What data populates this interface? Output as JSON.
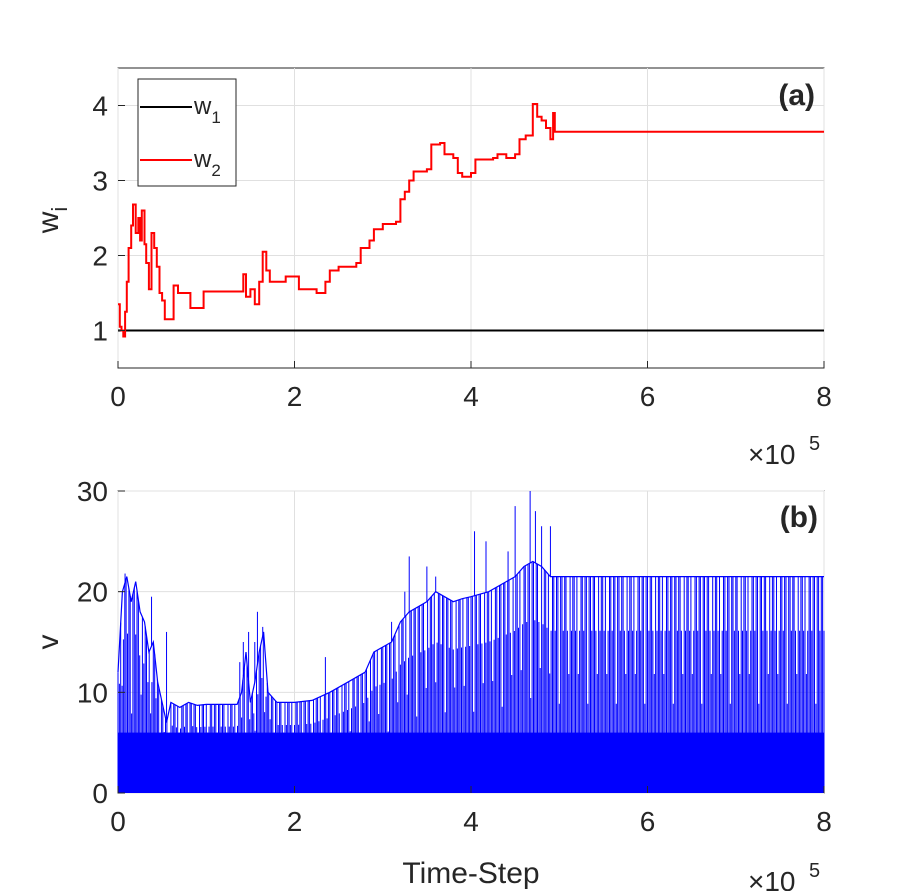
{
  "figure": {
    "x_exponent_base": "×10",
    "x_exponent_power": "5"
  },
  "chart_data": [
    {
      "type": "line",
      "panel_label": "(a)",
      "xlabel": "",
      "ylabel": "w",
      "ylabel_subscript": "i",
      "xlim": [
        0,
        8
      ],
      "ylim": [
        0.5,
        4.5
      ],
      "x_scale_note": "×10^5",
      "grid": true,
      "legend": {
        "placement": "top-left",
        "entries": [
          {
            "base": "w",
            "sub": "1",
            "color": "#000000"
          },
          {
            "base": "w",
            "sub": "2",
            "color": "#ff0000"
          }
        ]
      },
      "x_ticks": [
        "0",
        "2",
        "4",
        "6",
        "8"
      ],
      "y_ticks": [
        "1",
        "2",
        "3",
        "4"
      ],
      "series": [
        {
          "name": "w1",
          "color": "#000000",
          "points": [
            [
              0,
              1
            ],
            [
              8,
              1
            ]
          ]
        },
        {
          "name": "w2",
          "color": "#ff0000",
          "points": [
            [
              0,
              1.35
            ],
            [
              0.02,
              1.05
            ],
            [
              0.04,
              1.0
            ],
            [
              0.06,
              0.92
            ],
            [
              0.08,
              1.25
            ],
            [
              0.1,
              1.65
            ],
            [
              0.12,
              2.1
            ],
            [
              0.15,
              2.4
            ],
            [
              0.17,
              2.68
            ],
            [
              0.2,
              2.3
            ],
            [
              0.23,
              2.5
            ],
            [
              0.25,
              2.2
            ],
            [
              0.27,
              2.6
            ],
            [
              0.3,
              2.15
            ],
            [
              0.32,
              1.9
            ],
            [
              0.35,
              1.55
            ],
            [
              0.38,
              2.3
            ],
            [
              0.41,
              2.1
            ],
            [
              0.44,
              1.85
            ],
            [
              0.47,
              1.5
            ],
            [
              0.5,
              1.4
            ],
            [
              0.53,
              1.15
            ],
            [
              0.6,
              1.15
            ],
            [
              0.63,
              1.6
            ],
            [
              0.68,
              1.5
            ],
            [
              0.8,
              1.5
            ],
            [
              0.82,
              1.3
            ],
            [
              0.95,
              1.3
            ],
            [
              0.97,
              1.52
            ],
            [
              1.3,
              1.52
            ],
            [
              1.4,
              1.52
            ],
            [
              1.42,
              1.75
            ],
            [
              1.45,
              1.45
            ],
            [
              1.5,
              1.55
            ],
            [
              1.55,
              1.35
            ],
            [
              1.6,
              1.65
            ],
            [
              1.64,
              2.05
            ],
            [
              1.68,
              1.8
            ],
            [
              1.72,
              1.65
            ],
            [
              1.85,
              1.65
            ],
            [
              1.9,
              1.72
            ],
            [
              2.0,
              1.72
            ],
            [
              2.05,
              1.55
            ],
            [
              2.2,
              1.55
            ],
            [
              2.25,
              1.5
            ],
            [
              2.35,
              1.65
            ],
            [
              2.4,
              1.8
            ],
            [
              2.5,
              1.85
            ],
            [
              2.7,
              1.9
            ],
            [
              2.75,
              2.1
            ],
            [
              2.85,
              2.2
            ],
            [
              2.9,
              2.35
            ],
            [
              3.0,
              2.42
            ],
            [
              3.15,
              2.45
            ],
            [
              3.2,
              2.75
            ],
            [
              3.25,
              2.85
            ],
            [
              3.3,
              3.0
            ],
            [
              3.35,
              3.12
            ],
            [
              3.5,
              3.15
            ],
            [
              3.55,
              3.48
            ],
            [
              3.65,
              3.5
            ],
            [
              3.7,
              3.35
            ],
            [
              3.8,
              3.3
            ],
            [
              3.85,
              3.1
            ],
            [
              3.9,
              3.05
            ],
            [
              4.0,
              3.1
            ],
            [
              4.05,
              3.28
            ],
            [
              4.25,
              3.3
            ],
            [
              4.3,
              3.35
            ],
            [
              4.4,
              3.3
            ],
            [
              4.5,
              3.35
            ],
            [
              4.55,
              3.55
            ],
            [
              4.62,
              3.6
            ],
            [
              4.7,
              4.02
            ],
            [
              4.75,
              3.85
            ],
            [
              4.8,
              3.8
            ],
            [
              4.85,
              3.7
            ],
            [
              4.9,
              3.55
            ],
            [
              4.93,
              3.9
            ],
            [
              4.95,
              3.65
            ],
            [
              8.0,
              3.65
            ]
          ]
        }
      ]
    },
    {
      "type": "area",
      "panel_label": "(b)",
      "xlabel": "Time-Step",
      "ylabel": "v",
      "xlim": [
        0,
        8
      ],
      "ylim": [
        0,
        30
      ],
      "x_scale_note": "×10^5",
      "grid": true,
      "x_ticks": [
        "0",
        "2",
        "4",
        "6",
        "8"
      ],
      "y_ticks": [
        "0",
        "10",
        "20",
        "30"
      ],
      "series": [
        {
          "name": "v",
          "color": "#0000ff",
          "base_band": 6,
          "envelope": [
            [
              0,
              12
            ],
            [
              0.05,
              20
            ],
            [
              0.1,
              21.5
            ],
            [
              0.15,
              19
            ],
            [
              0.2,
              21
            ],
            [
              0.25,
              18
            ],
            [
              0.3,
              17
            ],
            [
              0.35,
              14
            ],
            [
              0.4,
              15
            ],
            [
              0.45,
              11
            ],
            [
              0.5,
              9
            ],
            [
              0.55,
              7
            ],
            [
              0.6,
              9
            ],
            [
              0.7,
              8.5
            ],
            [
              0.8,
              9
            ],
            [
              0.9,
              8.7
            ],
            [
              1.0,
              8.8
            ],
            [
              1.2,
              8.8
            ],
            [
              1.35,
              8.8
            ],
            [
              1.4,
              10
            ],
            [
              1.45,
              14
            ],
            [
              1.5,
              9
            ],
            [
              1.55,
              11
            ],
            [
              1.6,
              14
            ],
            [
              1.65,
              16
            ],
            [
              1.7,
              10
            ],
            [
              1.8,
              9
            ],
            [
              2.0,
              9
            ],
            [
              2.2,
              9.2
            ],
            [
              2.4,
              10
            ],
            [
              2.6,
              11
            ],
            [
              2.8,
              12
            ],
            [
              2.9,
              14
            ],
            [
              3.0,
              14.5
            ],
            [
              3.1,
              15
            ],
            [
              3.2,
              17
            ],
            [
              3.3,
              18
            ],
            [
              3.4,
              18.5
            ],
            [
              3.5,
              19
            ],
            [
              3.6,
              20
            ],
            [
              3.7,
              19.5
            ],
            [
              3.8,
              19
            ],
            [
              3.9,
              19.3
            ],
            [
              4.0,
              19.5
            ],
            [
              4.2,
              20
            ],
            [
              4.4,
              21
            ],
            [
              4.5,
              21.5
            ],
            [
              4.6,
              22.5
            ],
            [
              4.7,
              23
            ],
            [
              4.8,
              22.5
            ],
            [
              4.9,
              21.5
            ],
            [
              5.0,
              21.5
            ],
            [
              8.0,
              21.5
            ]
          ],
          "spikes": [
            [
              0.08,
              21.8
            ],
            [
              0.38,
              19.5
            ],
            [
              0.55,
              16
            ],
            [
              1.38,
              13
            ],
            [
              1.42,
              15
            ],
            [
              1.48,
              16
            ],
            [
              1.55,
              15
            ],
            [
              1.58,
              18
            ],
            [
              1.64,
              16.5
            ],
            [
              2.35,
              13.5
            ],
            [
              3.1,
              17
            ],
            [
              3.25,
              20
            ],
            [
              3.3,
              23.5
            ],
            [
              3.5,
              22.5
            ],
            [
              3.6,
              21.5
            ],
            [
              4.04,
              26
            ],
            [
              4.17,
              25
            ],
            [
              4.42,
              24
            ],
            [
              4.5,
              28.5
            ],
            [
              4.67,
              30
            ],
            [
              4.73,
              28
            ],
            [
              4.8,
              26.5
            ],
            [
              4.9,
              26.5
            ]
          ]
        }
      ]
    }
  ]
}
